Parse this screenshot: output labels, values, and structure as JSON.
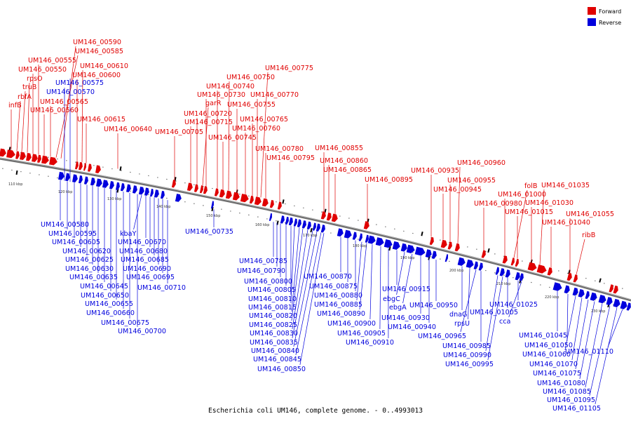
{
  "legend": {
    "forward": {
      "label": "Forward",
      "color": "#e00000"
    },
    "reverse": {
      "label": "Reverse",
      "color": "#0000dd"
    }
  },
  "caption": "Escherichia coli UM146, complete genome. - 0..4993013",
  "ticks": [
    "110 kbp",
    "120 kbp",
    "130 kbp",
    "140 kbp",
    "150 kbp",
    "160 kbp",
    "170 kbp",
    "180 kbp",
    "190 kbp",
    "200 kbp",
    "210 kbp",
    "220 kbp",
    "230 kbp"
  ],
  "forward_genes": [
    "infB",
    "rbfA",
    "truB",
    "rpsO",
    "UM146_00550",
    "UM146_00555",
    "UM146_00560",
    "UM146_00565",
    "UM146_00585",
    "UM146_00590",
    "UM146_00600",
    "UM146_00610",
    "UM146_00615",
    "UM146_00640",
    "UM146_00705",
    "UM146_00715",
    "UM146_00720",
    "garR",
    "UM146_00730",
    "UM146_00740",
    "UM146_00745",
    "UM146_00750",
    "UM146_00755",
    "UM146_00760",
    "UM146_00765",
    "UM146_00770",
    "UM146_00775",
    "UM146_00780",
    "UM146_00795",
    "UM146_00855",
    "UM146_00860",
    "UM146_00865",
    "UM146_00895",
    "UM146_00935",
    "UM146_00945",
    "UM146_00955",
    "UM146_00960",
    "UM146_00980",
    "UM146_01000",
    "folB",
    "UM146_01015",
    "UM146_01030",
    "UM146_01035",
    "UM146_01040",
    "UM146_01055",
    "ribB"
  ],
  "reverse_genes": [
    "UM146_00570",
    "UM146_00575",
    "UM146_00580",
    "UM146_00595",
    "UM146_00605",
    "UM146_00620",
    "UM146_00625",
    "UM146_00630",
    "UM146_00635",
    "UM146_00645",
    "UM146_00650",
    "UM146_00655",
    "UM146_00660",
    "UM146_00675",
    "UM146_00700",
    "kbaY",
    "UM146_00670",
    "UM146_00680",
    "UM146_00685",
    "UM146_00690",
    "UM146_00695",
    "UM146_00710",
    "UM146_00735",
    "UM146_00785",
    "UM146_00790",
    "UM146_00800",
    "UM146_00805",
    "UM146_00810",
    "UM146_00815",
    "UM146_00820",
    "UM146_00825",
    "UM146_00830",
    "UM146_00835",
    "UM146_00840",
    "UM146_00845",
    "UM146_00850",
    "UM146_00870",
    "UM146_00875",
    "UM146_00880",
    "UM146_00885",
    "UM146_00890",
    "UM146_00900",
    "UM146_00905",
    "UM146_00910",
    "UM146_00915",
    "ebgC",
    "ebgA",
    "UM146_00930",
    "UM146_00940",
    "UM146_00950",
    "dnaG",
    "rpsU",
    "UM146_00965",
    "UM146_00985",
    "UM146_00990",
    "UM146_00995",
    "UM146_01005",
    "UM146_01025",
    "cca",
    "UM146_01045",
    "UM146_01050",
    "UM146_01060",
    "UM146_01070",
    "UM146_01075",
    "UM146_01080",
    "UM146_01085",
    "UM146_01095",
    "UM146_01105",
    "UM146_01110"
  ]
}
